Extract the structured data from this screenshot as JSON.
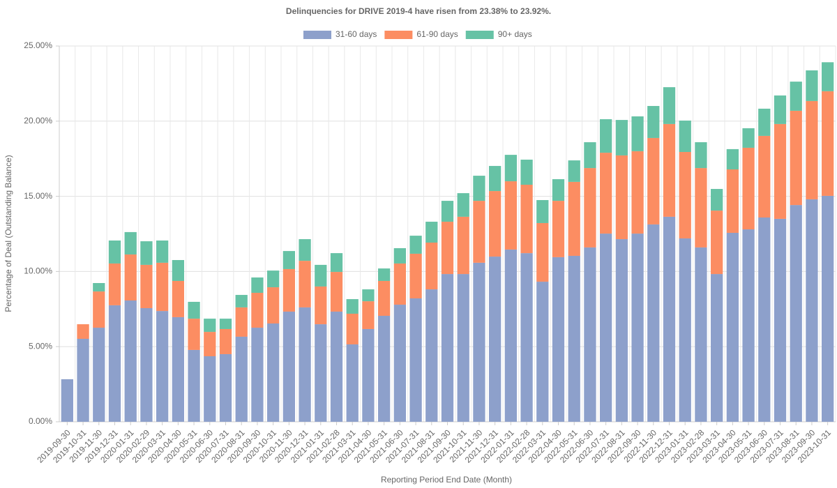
{
  "chart_data": {
    "type": "stacked_bar",
    "title": "Delinquencies for DRIVE 2019-4 have risen from 23.38% to 23.92%.",
    "x_label": "Reporting Period End Date (Month)",
    "y_label": "Percentage of Deal (Outstanding Balance)",
    "categories": [
      "2019-09-30",
      "2019-10-31",
      "2019-11-30",
      "2019-12-31",
      "2020-01-31",
      "2020-02-29",
      "2020-03-31",
      "2020-04-30",
      "2020-05-31",
      "2020-06-30",
      "2020-07-31",
      "2020-08-31",
      "2020-09-30",
      "2020-10-31",
      "2020-11-30",
      "2020-12-31",
      "2021-01-31",
      "2021-02-28",
      "2021-03-31",
      "2021-04-30",
      "2021-05-31",
      "2021-06-30",
      "2021-07-31",
      "2021-08-31",
      "2021-09-30",
      "2021-10-31",
      "2021-11-30",
      "2021-12-31",
      "2022-01-31",
      "2022-02-28",
      "2022-03-31",
      "2022-04-30",
      "2022-05-31",
      "2022-06-30",
      "2022-07-31",
      "2022-08-31",
      "2022-09-30",
      "2022-11-30",
      "2022-12-31",
      "2023-01-31",
      "2023-02-28",
      "2023-03-31",
      "2023-04-30",
      "2023-05-31",
      "2023-06-30",
      "2023-07-31",
      "2023-08-31",
      "2023-09-30",
      "2023-10-31"
    ],
    "series": [
      {
        "name": "31-60 days",
        "color": "#8da0cb",
        "values": [
          2.83,
          5.52,
          6.26,
          7.75,
          8.07,
          7.56,
          7.37,
          6.96,
          4.78,
          4.36,
          4.5,
          5.66,
          6.26,
          6.54,
          7.33,
          7.61,
          6.49,
          7.33,
          5.15,
          6.17,
          7.05,
          7.79,
          8.21,
          8.81,
          9.83,
          9.83,
          10.58,
          10.99,
          11.46,
          11.22,
          9.32,
          10.95,
          11.04,
          11.6,
          12.52,
          12.15,
          12.52,
          13.13,
          13.64,
          12.2,
          11.6,
          9.83,
          12.57,
          12.8,
          13.59,
          13.5,
          14.42,
          14.8,
          15.03
        ]
      },
      {
        "name": "61-90 days",
        "color": "#fc8d62",
        "values": [
          0,
          0.97,
          2.41,
          2.78,
          3.06,
          2.88,
          3.21,
          2.41,
          2.08,
          1.62,
          1.67,
          1.95,
          2.32,
          2.41,
          2.83,
          3.1,
          2.51,
          2.64,
          2.04,
          1.85,
          2.32,
          2.74,
          2.97,
          3.11,
          3.48,
          3.81,
          4.12,
          4.36,
          4.54,
          4.55,
          3.9,
          3.75,
          4.92,
          5.28,
          5.38,
          5.57,
          5.48,
          5.75,
          6.17,
          5.75,
          5.28,
          4.22,
          4.22,
          5.43,
          5.43,
          6.31,
          6.27,
          6.54,
          6.96
        ]
      },
      {
        "name": "90+ days",
        "color": "#66c2a5",
        "values": [
          0,
          0,
          0.56,
          1.53,
          1.49,
          1.57,
          1.48,
          1.39,
          1.12,
          0.88,
          0.69,
          0.83,
          1.02,
          1.11,
          1.2,
          1.44,
          1.44,
          1.25,
          0.97,
          0.79,
          0.83,
          1.02,
          1.2,
          1.39,
          1.39,
          1.57,
          1.67,
          1.67,
          1.76,
          1.67,
          1.53,
          1.44,
          1.43,
          1.72,
          2.23,
          2.36,
          2.32,
          2.13,
          2.45,
          2.09,
          1.72,
          1.44,
          1.35,
          1.3,
          1.81,
          1.9,
          1.94,
          2.04,
          1.93
        ]
      }
    ],
    "ylim": [
      0,
      25
    ],
    "yticks": [
      {
        "value": 0,
        "label": "0.00%"
      },
      {
        "value": 5,
        "label": "5.00%"
      },
      {
        "value": 10,
        "label": "10.00%"
      },
      {
        "value": 15,
        "label": "15.00%"
      },
      {
        "value": 20,
        "label": "20.00%"
      },
      {
        "value": 25,
        "label": "25.00%"
      }
    ],
    "grid": true,
    "legend": "top"
  }
}
